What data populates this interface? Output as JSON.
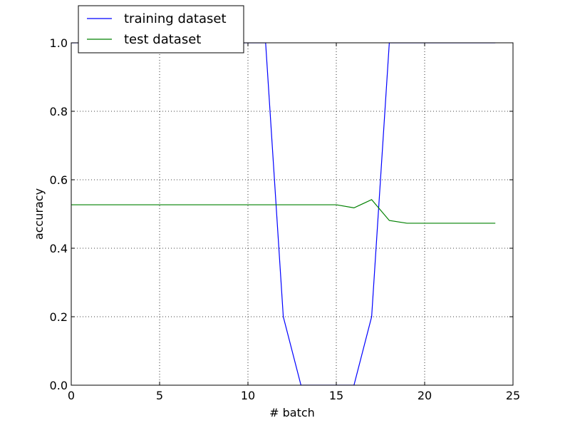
{
  "chart_data": {
    "type": "line",
    "xlabel": "# batch",
    "ylabel": "accuracy",
    "xlim": [
      0,
      25
    ],
    "ylim": [
      0.0,
      1.0
    ],
    "xticks": [
      0,
      5,
      10,
      15,
      20,
      25
    ],
    "yticks": [
      0.0,
      0.2,
      0.4,
      0.6,
      0.8,
      1.0
    ],
    "xtick_labels": [
      "0",
      "5",
      "10",
      "15",
      "20",
      "25"
    ],
    "ytick_labels": [
      "0.0",
      "0.2",
      "0.4",
      "0.6",
      "0.8",
      "1.0"
    ],
    "grid": true,
    "legend_position": "top-left, above the axes",
    "series": [
      {
        "name": "training dataset",
        "color": "#0000ff",
        "x": [
          0,
          1,
          2,
          3,
          4,
          5,
          6,
          7,
          8,
          9,
          10,
          11,
          12,
          13,
          14,
          15,
          16,
          17,
          18,
          19,
          20,
          21,
          22,
          23,
          24
        ],
        "y": [
          1.0,
          1.0,
          1.0,
          1.0,
          1.0,
          1.0,
          1.0,
          1.0,
          1.0,
          1.0,
          1.0,
          1.0,
          0.2,
          0.0,
          0.0,
          0.0,
          0.0,
          0.2,
          1.0,
          1.0,
          1.0,
          1.0,
          1.0,
          1.0,
          1.0
        ]
      },
      {
        "name": "test dataset",
        "color": "#008000",
        "x": [
          0,
          1,
          2,
          3,
          4,
          5,
          6,
          7,
          8,
          9,
          10,
          11,
          12,
          13,
          14,
          15,
          16,
          17,
          18,
          19,
          20,
          21,
          22,
          23,
          24
        ],
        "y": [
          0.527,
          0.527,
          0.527,
          0.527,
          0.527,
          0.527,
          0.527,
          0.527,
          0.527,
          0.527,
          0.527,
          0.527,
          0.527,
          0.527,
          0.527,
          0.527,
          0.518,
          0.542,
          0.481,
          0.473,
          0.473,
          0.473,
          0.473,
          0.473,
          0.473
        ]
      }
    ]
  }
}
